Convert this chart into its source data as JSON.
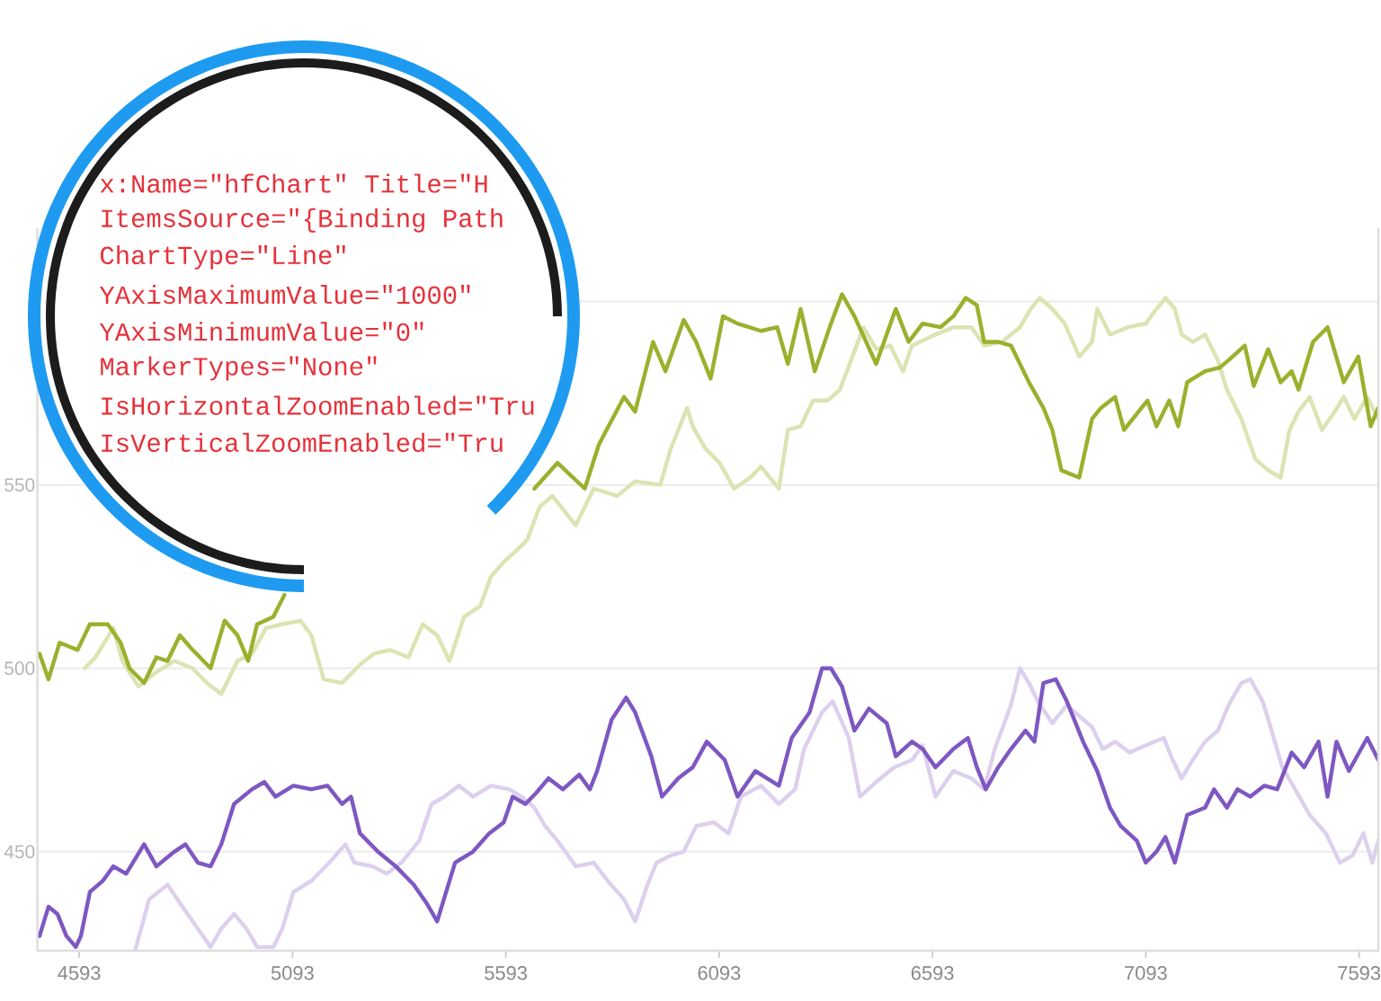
{
  "chart_data": {
    "type": "line",
    "xlim": [
      4495,
      7638
    ],
    "xticks": [
      4593,
      5093,
      5593,
      6093,
      6593,
      7093,
      7593
    ],
    "ylim": [
      423,
      620
    ],
    "yticks": [
      450,
      500,
      550,
      {
        "value": 600,
        "label": null
      }
    ],
    "grid": "y",
    "marker": "none",
    "series": [
      {
        "color": "#dbe4b2",
        "x": [
          4606,
          4631,
          4673,
          4694,
          4732,
          4774,
          4816,
          4859,
          4892,
          4926,
          4964,
          4998,
          5031,
          5069,
          5112,
          5137,
          5166,
          5209,
          5251,
          5284,
          5322,
          5365,
          5398,
          5432,
          5461,
          5495,
          5533,
          5558,
          5588,
          5617,
          5643,
          5672,
          5702,
          5757,
          5799,
          5854,
          5896,
          5955,
          5980,
          6018,
          6031,
          6060,
          6094,
          6128,
          6166,
          6191,
          6233,
          6254,
          6284,
          6313,
          6347,
          6376,
          6402,
          6431,
          6461,
          6494,
          6524,
          6545,
          6600,
          6642,
          6684,
          6714,
          6756,
          6798,
          6823,
          6844,
          6874,
          6903,
          6937,
          6967,
          6979,
          7009,
          7051,
          7093,
          7118,
          7139,
          7161,
          7177,
          7203,
          7232,
          7262,
          7283,
          7317,
          7350,
          7380,
          7409,
          7430,
          7451,
          7477,
          7506,
          7536,
          7557,
          7582,
          7612,
          7638
        ],
        "values": [
          500,
          503,
          511,
          502,
          495,
          499,
          502,
          500,
          496,
          493,
          502,
          504,
          511,
          512,
          513,
          509,
          497,
          496,
          501,
          504,
          505,
          503,
          512,
          509,
          502,
          514,
          517,
          525,
          529,
          532,
          535,
          544,
          547,
          539,
          549,
          547,
          551,
          550,
          560,
          571,
          566,
          560,
          556,
          549,
          552,
          555,
          549,
          565,
          566,
          573,
          573,
          576,
          584,
          593,
          587,
          588,
          581,
          588,
          591,
          593,
          593,
          588,
          589,
          593,
          598,
          601,
          598,
          594,
          585,
          589,
          598,
          591,
          593,
          594,
          598,
          601,
          598,
          591,
          589,
          591,
          584,
          576,
          568,
          557,
          554,
          552,
          565,
          570,
          574,
          565,
          570,
          574,
          568,
          574,
          568
        ]
      },
      {
        "color": "#9bb02d",
        "x": [
          4500,
          4521,
          4547,
          4589,
          4618,
          4660,
          4690,
          4711,
          4745,
          4774,
          4800,
          4829,
          4859,
          4901,
          4934,
          4964,
          4989,
          5010,
          5048,
          5074,
          5400,
          5660,
          5714,
          5778,
          5811,
          5870,
          5896,
          5938,
          5967,
          6010,
          6039,
          6073,
          6102,
          6136,
          6191,
          6229,
          6254,
          6284,
          6317,
          6355,
          6381,
          6410,
          6461,
          6507,
          6537,
          6570,
          6612,
          6642,
          6671,
          6697,
          6714,
          6747,
          6777,
          6819,
          6853,
          6874,
          6895,
          6937,
          6967,
          6988,
          7021,
          7042,
          7076,
          7097,
          7118,
          7148,
          7169,
          7190,
          7232,
          7266,
          7287,
          7325,
          7346,
          7380,
          7409,
          7435,
          7451,
          7485,
          7519,
          7557,
          7591,
          7620,
          7638
        ],
        "values": [
          504,
          497,
          507,
          505,
          512,
          512,
          507,
          500,
          496,
          503,
          502,
          509,
          505,
          500,
          513,
          509,
          502,
          512,
          514,
          520,
          null,
          549,
          556,
          549,
          561,
          574,
          570,
          589,
          581,
          595,
          589,
          579,
          596,
          594,
          592,
          593,
          583,
          598,
          581,
          594,
          602,
          596,
          583,
          598,
          589,
          594,
          593,
          596,
          601,
          599,
          589,
          589,
          588,
          578,
          571,
          565,
          554,
          552,
          568,
          571,
          574,
          565,
          570,
          573,
          566,
          573,
          566,
          578,
          581,
          582,
          584,
          588,
          577,
          587,
          578,
          581,
          576,
          589,
          593,
          578,
          585,
          566,
          571
        ]
      },
      {
        "color": "#dcd0ee",
        "x": [
          4724,
          4757,
          4800,
          4829,
          4871,
          4901,
          4926,
          4956,
          4985,
          5010,
          5048,
          5069,
          5095,
          5137,
          5179,
          5217,
          5238,
          5280,
          5314,
          5348,
          5390,
          5419,
          5449,
          5483,
          5516,
          5558,
          5601,
          5630,
          5660,
          5685,
          5714,
          5757,
          5799,
          5832,
          5870,
          5896,
          5925,
          5946,
          5980,
          6010,
          6039,
          6081,
          6115,
          6144,
          6191,
          6233,
          6271,
          6292,
          6334,
          6359,
          6397,
          6423,
          6461,
          6503,
          6545,
          6570,
          6600,
          6642,
          6684,
          6714,
          6739,
          6777,
          6798,
          6819,
          6840,
          6874,
          6908,
          6937,
          6967,
          6992,
          7021,
          7055,
          7093,
          7135,
          7156,
          7177,
          7203,
          7232,
          7262,
          7287,
          7317,
          7338,
          7367,
          7388,
          7413,
          7443,
          7477,
          7515,
          7548,
          7578,
          7603,
          7624,
          7638
        ],
        "values": [
          423,
          437,
          441,
          436,
          429,
          424,
          429,
          433,
          429,
          424,
          424,
          429,
          439,
          442,
          447,
          452,
          447,
          446,
          444,
          447,
          453,
          463,
          465,
          468,
          465,
          468,
          467,
          465,
          462,
          457,
          453,
          446,
          447,
          442,
          437,
          431,
          441,
          447,
          449,
          450,
          457,
          458,
          455,
          465,
          468,
          463,
          467,
          478,
          488,
          491,
          481,
          465,
          469,
          473,
          475,
          479,
          465,
          472,
          470,
          467,
          478,
          490,
          500,
          496,
          491,
          485,
          490,
          487,
          484,
          478,
          480,
          477,
          479,
          481,
          475,
          470,
          475,
          480,
          483,
          490,
          496,
          497,
          491,
          483,
          473,
          467,
          460,
          455,
          447,
          449,
          455,
          447,
          453
        ]
      },
      {
        "color": "#7e57c2",
        "x": [
          4500,
          4521,
          4542,
          4563,
          4585,
          4597,
          4618,
          4648,
          4673,
          4703,
          4745,
          4774,
          4816,
          4842,
          4871,
          4901,
          4926,
          4956,
          4998,
          5027,
          5053,
          5095,
          5137,
          5175,
          5209,
          5230,
          5251,
          5293,
          5335,
          5377,
          5407,
          5432,
          5453,
          5474,
          5516,
          5554,
          5588,
          5609,
          5639,
          5664,
          5693,
          5727,
          5765,
          5790,
          5807,
          5841,
          5875,
          5896,
          5934,
          5959,
          5997,
          6031,
          6064,
          6106,
          6136,
          6178,
          6233,
          6263,
          6305,
          6334,
          6355,
          6381,
          6410,
          6444,
          6486,
          6507,
          6545,
          6570,
          6600,
          6642,
          6676,
          6697,
          6718,
          6747,
          6777,
          6811,
          6832,
          6853,
          6882,
          6908,
          6946,
          6979,
          7009,
          7034,
          7072,
          7093,
          7118,
          7139,
          7161,
          7190,
          7232,
          7253,
          7283,
          7308,
          7338,
          7371,
          7401,
          7435,
          7464,
          7498,
          7519,
          7540,
          7569,
          7612,
          7638
        ],
        "values": [
          427,
          435,
          433,
          427,
          424,
          427,
          439,
          442,
          446,
          444,
          452,
          446,
          450,
          452,
          447,
          446,
          452,
          463,
          467,
          469,
          465,
          468,
          467,
          468,
          463,
          465,
          455,
          450,
          446,
          441,
          436,
          431,
          439,
          447,
          450,
          455,
          458,
          465,
          463,
          466,
          470,
          467,
          471,
          467,
          472,
          486,
          492,
          488,
          476,
          465,
          470,
          473,
          480,
          475,
          465,
          472,
          468,
          481,
          488,
          500,
          500,
          495,
          483,
          489,
          485,
          476,
          480,
          478,
          473,
          478,
          481,
          473,
          467,
          473,
          478,
          483,
          480,
          496,
          497,
          491,
          480,
          472,
          462,
          457,
          453,
          447,
          450,
          454,
          447,
          460,
          462,
          467,
          462,
          467,
          465,
          468,
          467,
          477,
          473,
          480,
          465,
          480,
          472,
          481,
          475
        ]
      }
    ],
    "annotations": [
      "x:Name=\"hfChart\" Title=\"H",
      "ItemsSource=\"{Binding Path",
      "ChartType=\"Line\"",
      "YAxisMaximumValue=\"1000\"",
      "YAxisMinimumValue=\"0\"",
      "MarkerTypes=\"None\"",
      "IsHorizontalZoomEnabled=\"Tru",
      "IsVerticalZoomEnabled=\"Tru"
    ]
  }
}
